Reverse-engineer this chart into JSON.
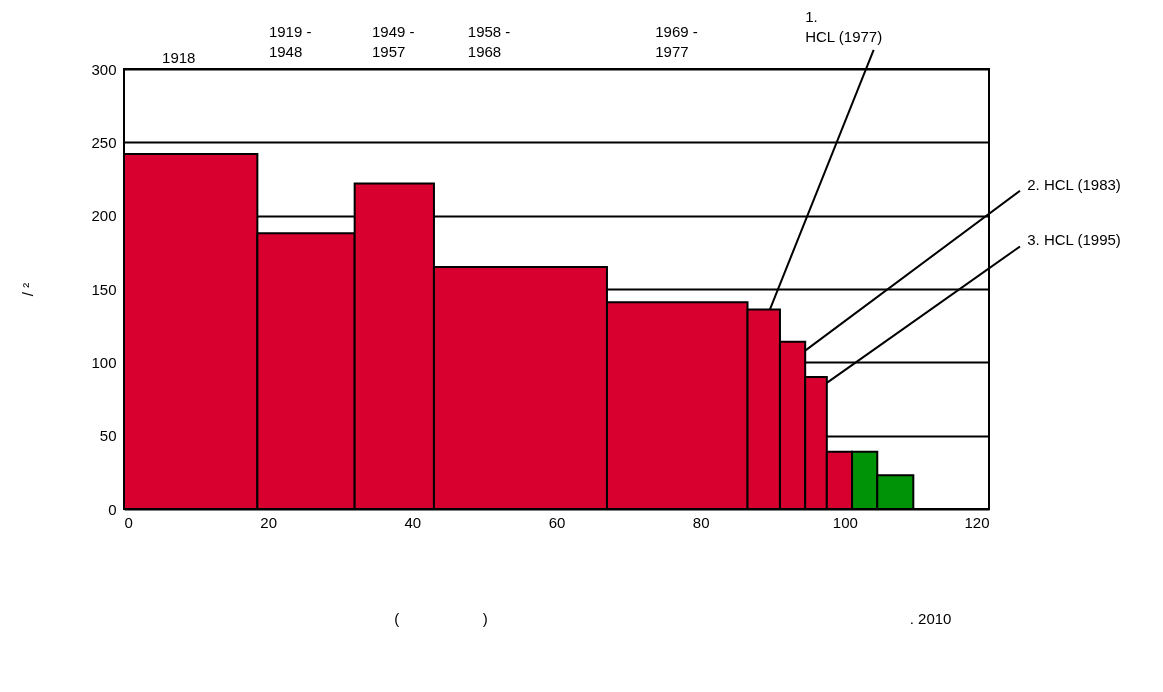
{
  "chart_data": {
    "type": "histogram",
    "ylabel": "/ ²",
    "bins": [
      0,
      18.5,
      32,
      43,
      67,
      86.5,
      91,
      94.5,
      97.5,
      101,
      104.5,
      109.5
    ],
    "values": [
      242,
      188,
      222,
      165,
      141,
      136,
      114,
      90,
      39,
      39,
      23
    ],
    "colors": [
      "#d7002f",
      "#d7002f",
      "#d7002f",
      "#d7002f",
      "#d7002f",
      "#d7002f",
      "#d7002f",
      "#d7002f",
      "#d7002f",
      "#009307",
      "#009307"
    ],
    "xlim": [
      0,
      120
    ],
    "xticks": [
      0,
      20,
      40,
      60,
      80,
      100,
      120
    ],
    "ylim": [
      0,
      300
    ],
    "yticks": [
      0,
      50,
      100,
      150,
      200,
      250,
      300
    ],
    "grid": "y",
    "annotations": [
      "1918",
      "1919 - 1948",
      "1949 - 1957",
      "1958 - 1968",
      "1969 - 1977",
      {
        "text": "1. HCL (1977)",
        "x": 89.6,
        "y": 136
      },
      {
        "text": "2. HCL (1983)",
        "x": 94.5,
        "y": 108
      },
      {
        "text": "3. HCL (1995)",
        "x": 97.5,
        "y": 86
      },
      ". 2010",
      "(                    )"
    ]
  }
}
